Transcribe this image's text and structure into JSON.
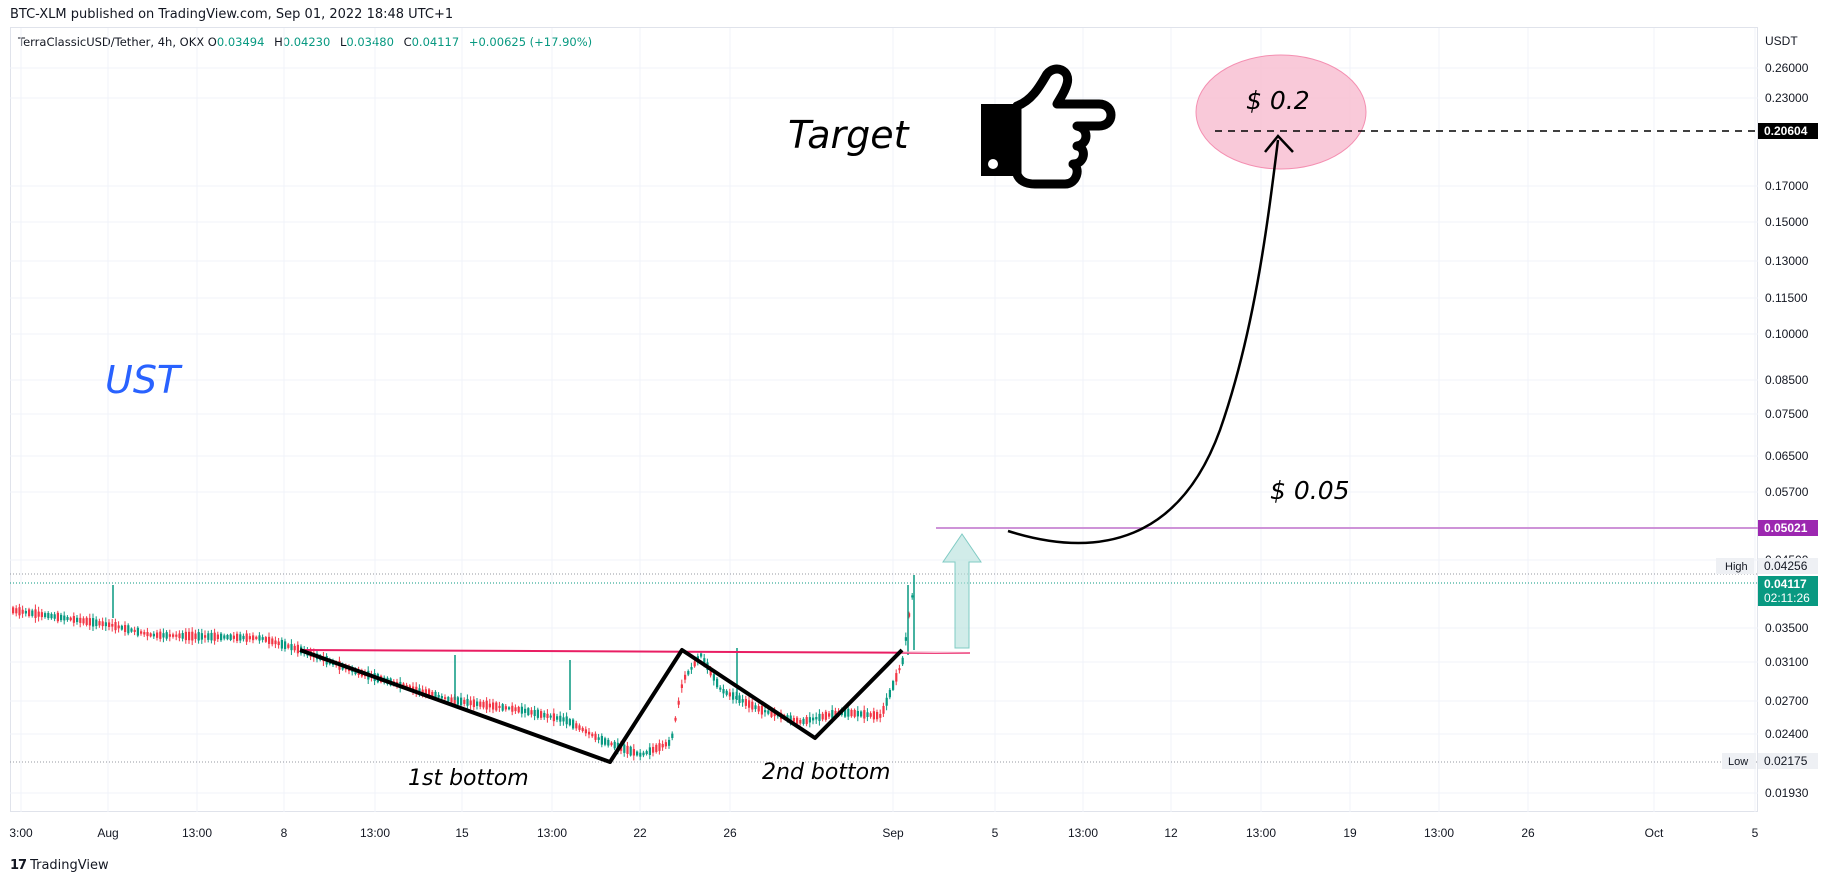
{
  "header": {
    "published": "BTC-XLM published on TradingView.com, Sep 01, 2022 18:48 UTC+1"
  },
  "legend": {
    "symbol": "TerraClassicUSD/Tether, 4h, OKX",
    "open_label": "O",
    "open": "0.03494",
    "high_label": "H",
    "high": "0.04230",
    "low_label": "L",
    "low": "0.03480",
    "close_label": "C",
    "close": "0.04117",
    "change": "+0.00625 (+17.90%)"
  },
  "footer": {
    "brand": "TradingView"
  },
  "colors": {
    "up": "#089981",
    "down": "#f23645",
    "neckline": "#e91e63",
    "purple": "#9c27b0",
    "blue": "#2962ff",
    "pink_fill": "#f8bbd0"
  },
  "chart_data": {
    "type": "candlestick",
    "currency": "USDT",
    "x_ticks": [
      "3:00",
      "Aug",
      "13:00",
      "8",
      "13:00",
      "15",
      "13:00",
      "22",
      "26",
      "Sep",
      "5",
      "13:00",
      "12",
      "13:00",
      "19",
      "13:00",
      "26",
      "Oct",
      "5"
    ],
    "y_ticks": [
      "0.26000",
      "0.23000",
      "0.17000",
      "0.15000",
      "0.13000",
      "0.11500",
      "0.10000",
      "0.08500",
      "0.07500",
      "0.06500",
      "0.05700",
      "0.04500",
      "0.03500",
      "0.03100",
      "0.02700",
      "0.02400",
      "0.01930"
    ],
    "price_labels": {
      "target": "0.20604",
      "resistance": "0.05021",
      "high_label": "High",
      "high": "0.04256",
      "current": "0.04117",
      "countdown": "02:11:26",
      "low_label": "Low",
      "low": "0.02175"
    },
    "annotations": {
      "target_text": "Target",
      "target_price": "$ 0.2",
      "resistance_price": "$ 0.05",
      "symbol_tag": "UST",
      "bottom1": "1st bottom",
      "bottom2": "2nd bottom"
    }
  }
}
